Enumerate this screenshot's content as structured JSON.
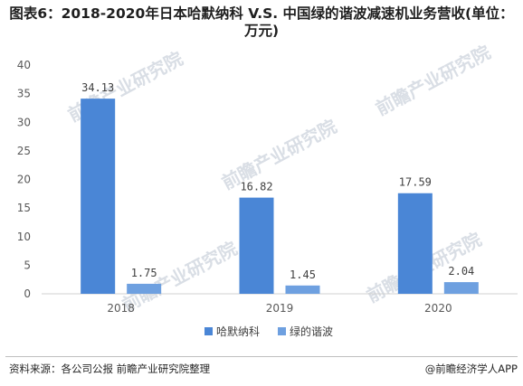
{
  "title": "图表6：2018-2020年日本哈默纳科 V.S. 中国绿的谐波减速机业务营收(单位：万元)",
  "source": "资料来源：各公司公报 前瞻产业研究院整理",
  "credit": "@前瞻经济学人APP",
  "watermark": "前瞻产业研究院",
  "colors": {
    "series1": "#4a86d6",
    "series2": "#6ea0e0"
  },
  "chart_data": {
    "type": "bar",
    "categories": [
      "2018",
      "2019",
      "2020"
    ],
    "series": [
      {
        "name": "哈默纳科",
        "values": [
          34.13,
          16.82,
          17.59
        ],
        "labels": [
          "34.13",
          "16.82",
          "17.59"
        ]
      },
      {
        "name": "绿的谐波",
        "values": [
          1.75,
          1.45,
          2.04
        ],
        "labels": [
          "1.75",
          "1.45",
          "2.04"
        ]
      }
    ],
    "yticks": [
      "0",
      "5",
      "10",
      "15",
      "20",
      "25",
      "30",
      "35",
      "40"
    ],
    "ylim": [
      0,
      40
    ],
    "grid": false,
    "legend": "bottom"
  }
}
